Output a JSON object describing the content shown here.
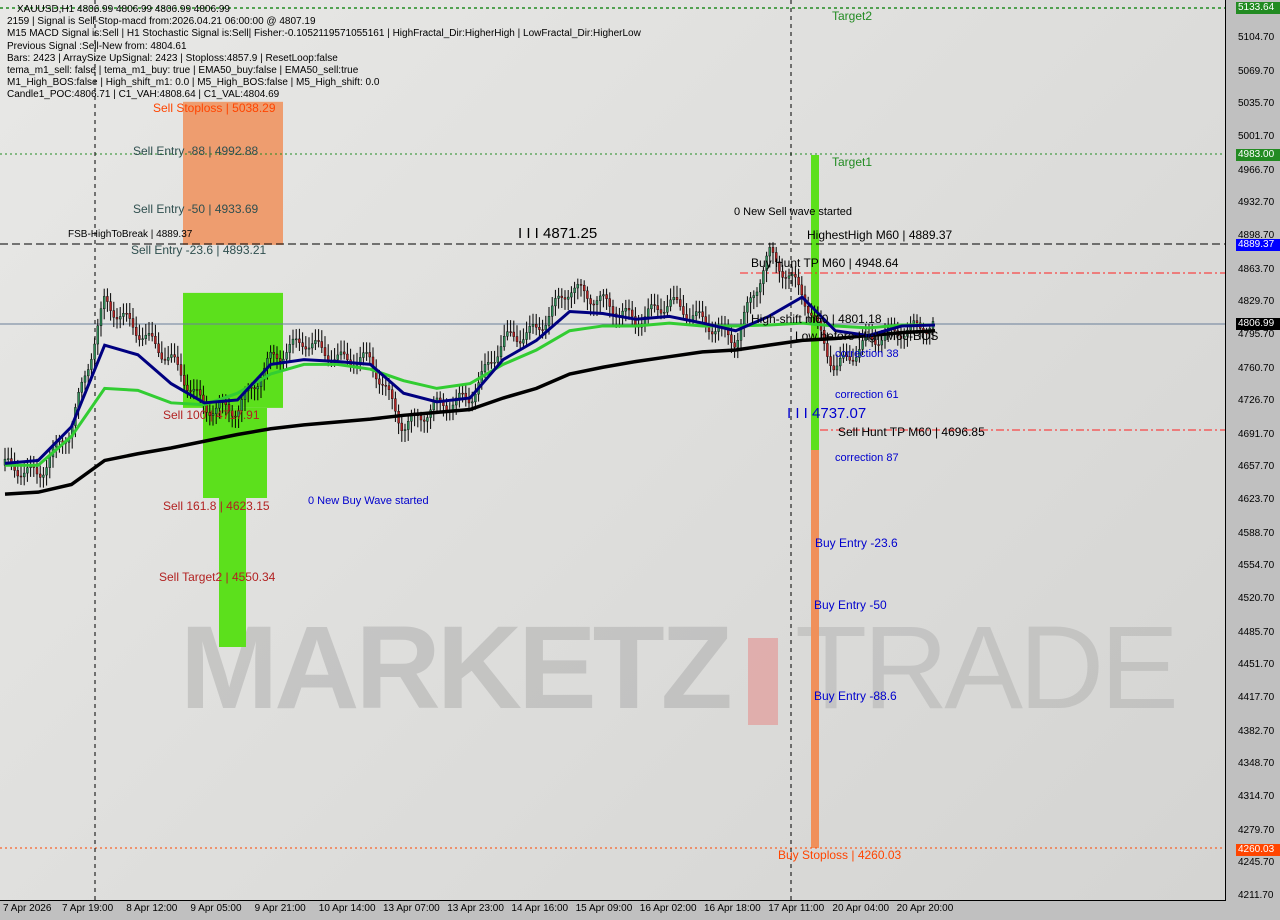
{
  "symbol_line": "XAUUSD,H1  4806.99 4806.99 4806.99 4806.99",
  "info_lines": [
    "2159 | Signal is Sell-Stop-macd from:2026.04.21 06:00:00 @ 4807.19",
    "M15 MACD Signal is:Sell | H1 Stochastic Signal is:Sell| Fisher:-0.1052119571055161 | HighFractal_Dir:HigherHigh | LowFractal_Dir:HigherLow",
    "Previous Signal :Sell-New from: 4804.61",
    "Bars: 2423 | ArraySize UpSignal: 2423 | Stoploss:4857.9 | ResetLoop:false",
    "tema_m1_sell: false | tema_m1_buy: true | EMA50_buy:false | EMA50_sell:true",
    "M1_High_BOS:false | High_shift_m1: 0.0 | M5_High_BOS:false | M5_High_shift: 0.0",
    "Candle1_POC:4806.71 | C1_VAH:4808.64 | C1_VAL:4804.69"
  ],
  "watermark": {
    "left": "MARKETZ",
    "right": "TRADE"
  },
  "labels": {
    "sell_stoploss": "Sell Stoploss | 5038.29",
    "sell_entry_88": "Sell Entry -88 | 4992.88",
    "sell_entry_50": "Sell Entry -50 | 4933.69",
    "sell_entry_23": "Sell Entry -23.6 | 4893.21",
    "fsb": "FSB-HighToBreak | 4889.37",
    "sell_100": "Sell 100 | 4717.91",
    "sell_161": "Sell 161.8 | 4623.15",
    "sell_target2": "Sell Target2 | 4550.34",
    "new_buy_wave": "0 New Buy Wave started",
    "level_4871": "I I I 4871.25",
    "new_sell_wave": "0 New Sell wave started",
    "highest_high": "HighestHigh   M60 | 4889.37",
    "buy_hunt": "Buy Hunt TP M60 | 4948.64",
    "high_shift": "High-shift m60 | 4801.18",
    "low_before": "Low before High M60-BOS",
    "correction38": "correction 38",
    "correction61": "correction 61",
    "correction87": "correction 87",
    "level_4737": "I I I 4737.07",
    "sell_hunt": "Sell Hunt TP M60 | 4696.85",
    "buy_entry_23": "Buy Entry -23.6",
    "buy_entry_50": "Buy Entry -50",
    "buy_entry_88": "Buy Entry -88.6",
    "buy_stoploss": "Buy Stoploss | 4260.03",
    "target1": "Target1",
    "target2": "Target2"
  },
  "colors": {
    "sell_zone": "#f0905a",
    "green_zone": "#5ce01c",
    "ema_fast": "#000080",
    "ema_mid": "#32cd32",
    "ema_slow": "#000000",
    "buy_text": "#0000cd",
    "sell_text": "#b22222"
  },
  "chart_data": {
    "type": "candlestick",
    "ylim": [
      4211.7,
      5140
    ],
    "y_ticks": [
      "5104.70",
      "5069.70",
      "5035.70",
      "5001.70",
      "4966.70",
      "4932.70",
      "4898.70",
      "4863.70",
      "4829.70",
      "4795.70",
      "4760.70",
      "4726.70",
      "4691.70",
      "4657.70",
      "4623.70",
      "4588.70",
      "4554.70",
      "4520.70",
      "4485.70",
      "4451.70",
      "4417.70",
      "4382.70",
      "4348.70",
      "4314.70",
      "4279.70",
      "4245.70",
      "4211.70"
    ],
    "x_ticks": [
      "7 Apr 2026",
      "7 Apr 19:00",
      "8 Apr 12:00",
      "9 Apr 05:00",
      "9 Apr 21:00",
      "10 Apr 14:00",
      "13 Apr 07:00",
      "13 Apr 23:00",
      "14 Apr 16:00",
      "15 Apr 09:00",
      "16 Apr 02:00",
      "16 Apr 18:00",
      "17 Apr 11:00",
      "20 Apr 04:00",
      "20 Apr 20:00"
    ],
    "price_tags": [
      {
        "value": "5133.64",
        "color": "#228b22"
      },
      {
        "value": "4983.00",
        "color": "#228b22"
      },
      {
        "value": "4889.37",
        "color": "#0000ff"
      },
      {
        "value": "4806.99",
        "color": "#000000"
      },
      {
        "value": "4260.03",
        "color": "#ff4500"
      }
    ],
    "close_path": [
      4660,
      4650,
      4700,
      4830,
      4800,
      4770,
      4720,
      4718,
      4770,
      4790,
      4770,
      4770,
      4700,
      4722,
      4730,
      4790,
      4800,
      4845,
      4830,
      4810,
      4830,
      4810,
      4790,
      4880,
      4840,
      4760,
      4790,
      4800,
      4807
    ],
    "ema_fast": [
      4662,
      4665,
      4700,
      4785,
      4775,
      4745,
      4725,
      4728,
      4765,
      4770,
      4768,
      4765,
      4735,
      4726,
      4730,
      4770,
      4790,
      4820,
      4818,
      4812,
      4815,
      4808,
      4800,
      4815,
      4835,
      4800,
      4795,
      4805,
      4806
    ],
    "ema_mid": [
      4660,
      4660,
      4690,
      4740,
      4738,
      4725,
      4723,
      4735,
      4755,
      4765,
      4765,
      4760,
      4748,
      4740,
      4745,
      4765,
      4780,
      4800,
      4805,
      4805,
      4808,
      4805,
      4805,
      4806,
      4808,
      4805,
      4803,
      4806,
      4806
    ],
    "ema_slow": [
      4630,
      4632,
      4640,
      4665,
      4672,
      4678,
      4685,
      4692,
      4698,
      4702,
      4705,
      4708,
      4712,
      4715,
      4718,
      4730,
      4740,
      4755,
      4762,
      4768,
      4773,
      4778,
      4780,
      4785,
      4790,
      4792,
      4795,
      4798,
      4800
    ]
  }
}
